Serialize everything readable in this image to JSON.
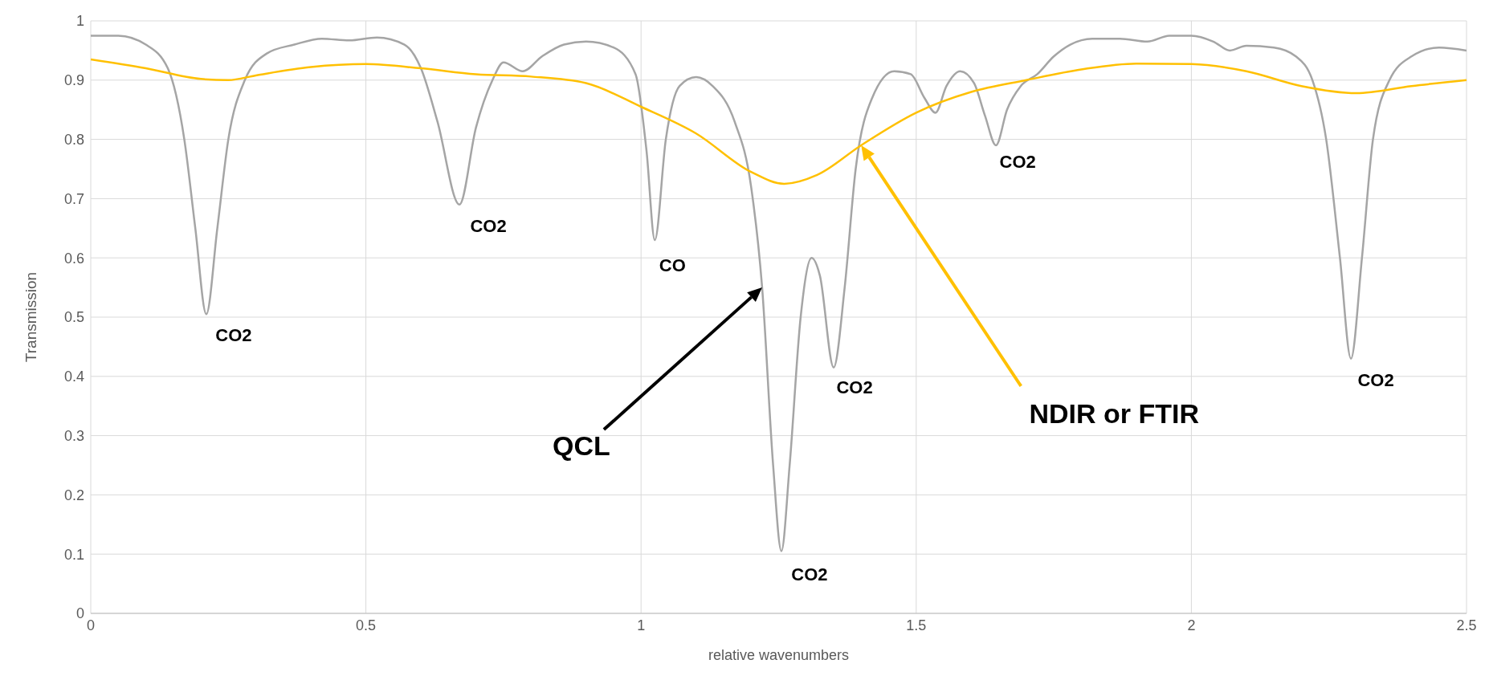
{
  "chart_data": {
    "type": "line",
    "xlabel": "relative wavenumbers",
    "ylabel": "Transmission",
    "xlim": [
      0,
      2.5
    ],
    "xticks": [
      0,
      0.5,
      1,
      1.5,
      2,
      2.5
    ],
    "ylim": [
      0,
      1
    ],
    "yticks": [
      0,
      0.1,
      0.2,
      0.3,
      0.4,
      0.5,
      0.6,
      0.7,
      0.8,
      0.9,
      1
    ],
    "grid": true,
    "marker": "none",
    "line_style": "solid",
    "series": [
      {
        "color": "#a5a5a5",
        "x": [
          0,
          0.05,
          0.1,
          0.14,
          0.17,
          0.19,
          0.21,
          0.23,
          0.25,
          0.28,
          0.32,
          0.37,
          0.42,
          0.47,
          0.52,
          0.57,
          0.6,
          0.63,
          0.67,
          0.7,
          0.73,
          0.75,
          0.785,
          0.82,
          0.86,
          0.9,
          0.95,
          0.99,
          1.01,
          1.025,
          1.045,
          1.07,
          1.1,
          1.13,
          1.17,
          1.2,
          1.22,
          1.24,
          1.255,
          1.27,
          1.29,
          1.31,
          1.325,
          1.35,
          1.37,
          1.39,
          1.42,
          1.46,
          1.49,
          1.515,
          1.535,
          1.555,
          1.58,
          1.605,
          1.625,
          1.645,
          1.665,
          1.69,
          1.72,
          1.75,
          1.78,
          1.82,
          1.87,
          1.92,
          1.96,
          2.0,
          2.04,
          2.07,
          2.1,
          2.15,
          2.19,
          2.22,
          2.245,
          2.27,
          2.29,
          2.31,
          2.33,
          2.36,
          2.4,
          2.45,
          2.5
        ],
        "values": [
          0.975,
          0.975,
          0.96,
          0.92,
          0.8,
          0.65,
          0.505,
          0.65,
          0.8,
          0.9,
          0.945,
          0.96,
          0.97,
          0.967,
          0.972,
          0.96,
          0.92,
          0.83,
          0.69,
          0.82,
          0.9,
          0.93,
          0.915,
          0.94,
          0.96,
          0.965,
          0.955,
          0.91,
          0.78,
          0.63,
          0.8,
          0.89,
          0.905,
          0.89,
          0.83,
          0.72,
          0.55,
          0.25,
          0.105,
          0.25,
          0.5,
          0.6,
          0.57,
          0.415,
          0.55,
          0.75,
          0.87,
          0.915,
          0.91,
          0.87,
          0.845,
          0.89,
          0.915,
          0.895,
          0.84,
          0.79,
          0.85,
          0.89,
          0.91,
          0.94,
          0.96,
          0.97,
          0.97,
          0.965,
          0.975,
          0.975,
          0.965,
          0.95,
          0.958,
          0.955,
          0.94,
          0.9,
          0.8,
          0.6,
          0.43,
          0.6,
          0.8,
          0.9,
          0.94,
          0.955,
          0.95
        ]
      },
      {
        "color": "#ffc000",
        "x": [
          0,
          0.1,
          0.2,
          0.25,
          0.3,
          0.4,
          0.5,
          0.6,
          0.7,
          0.8,
          0.9,
          1.0,
          1.1,
          1.2,
          1.26,
          1.32,
          1.4,
          1.5,
          1.6,
          1.7,
          1.8,
          1.9,
          2.0,
          2.1,
          2.2,
          2.3,
          2.4,
          2.5
        ],
        "values": [
          0.935,
          0.92,
          0.902,
          0.9,
          0.908,
          0.922,
          0.927,
          0.92,
          0.91,
          0.906,
          0.895,
          0.855,
          0.81,
          0.745,
          0.725,
          0.74,
          0.79,
          0.845,
          0.88,
          0.9,
          0.918,
          0.928,
          0.927,
          0.915,
          0.89,
          0.878,
          0.89,
          0.9
        ]
      }
    ],
    "annotations": [
      {
        "text": "CO2",
        "x": 0.21,
        "y": 0.505
      },
      {
        "text": "CO2",
        "x": 0.67,
        "y": 0.69
      },
      {
        "text": "CO",
        "x": 1.025,
        "y": 0.63
      },
      {
        "text": "CO2",
        "x": 1.255,
        "y": 0.105
      },
      {
        "text": "CO2",
        "x": 1.35,
        "y": 0.415
      },
      {
        "text": "CO2",
        "x": 1.645,
        "y": 0.79
      },
      {
        "text": "CO2",
        "x": 2.29,
        "y": 0.43
      },
      "QCL",
      "NDIR or FTIR"
    ]
  }
}
